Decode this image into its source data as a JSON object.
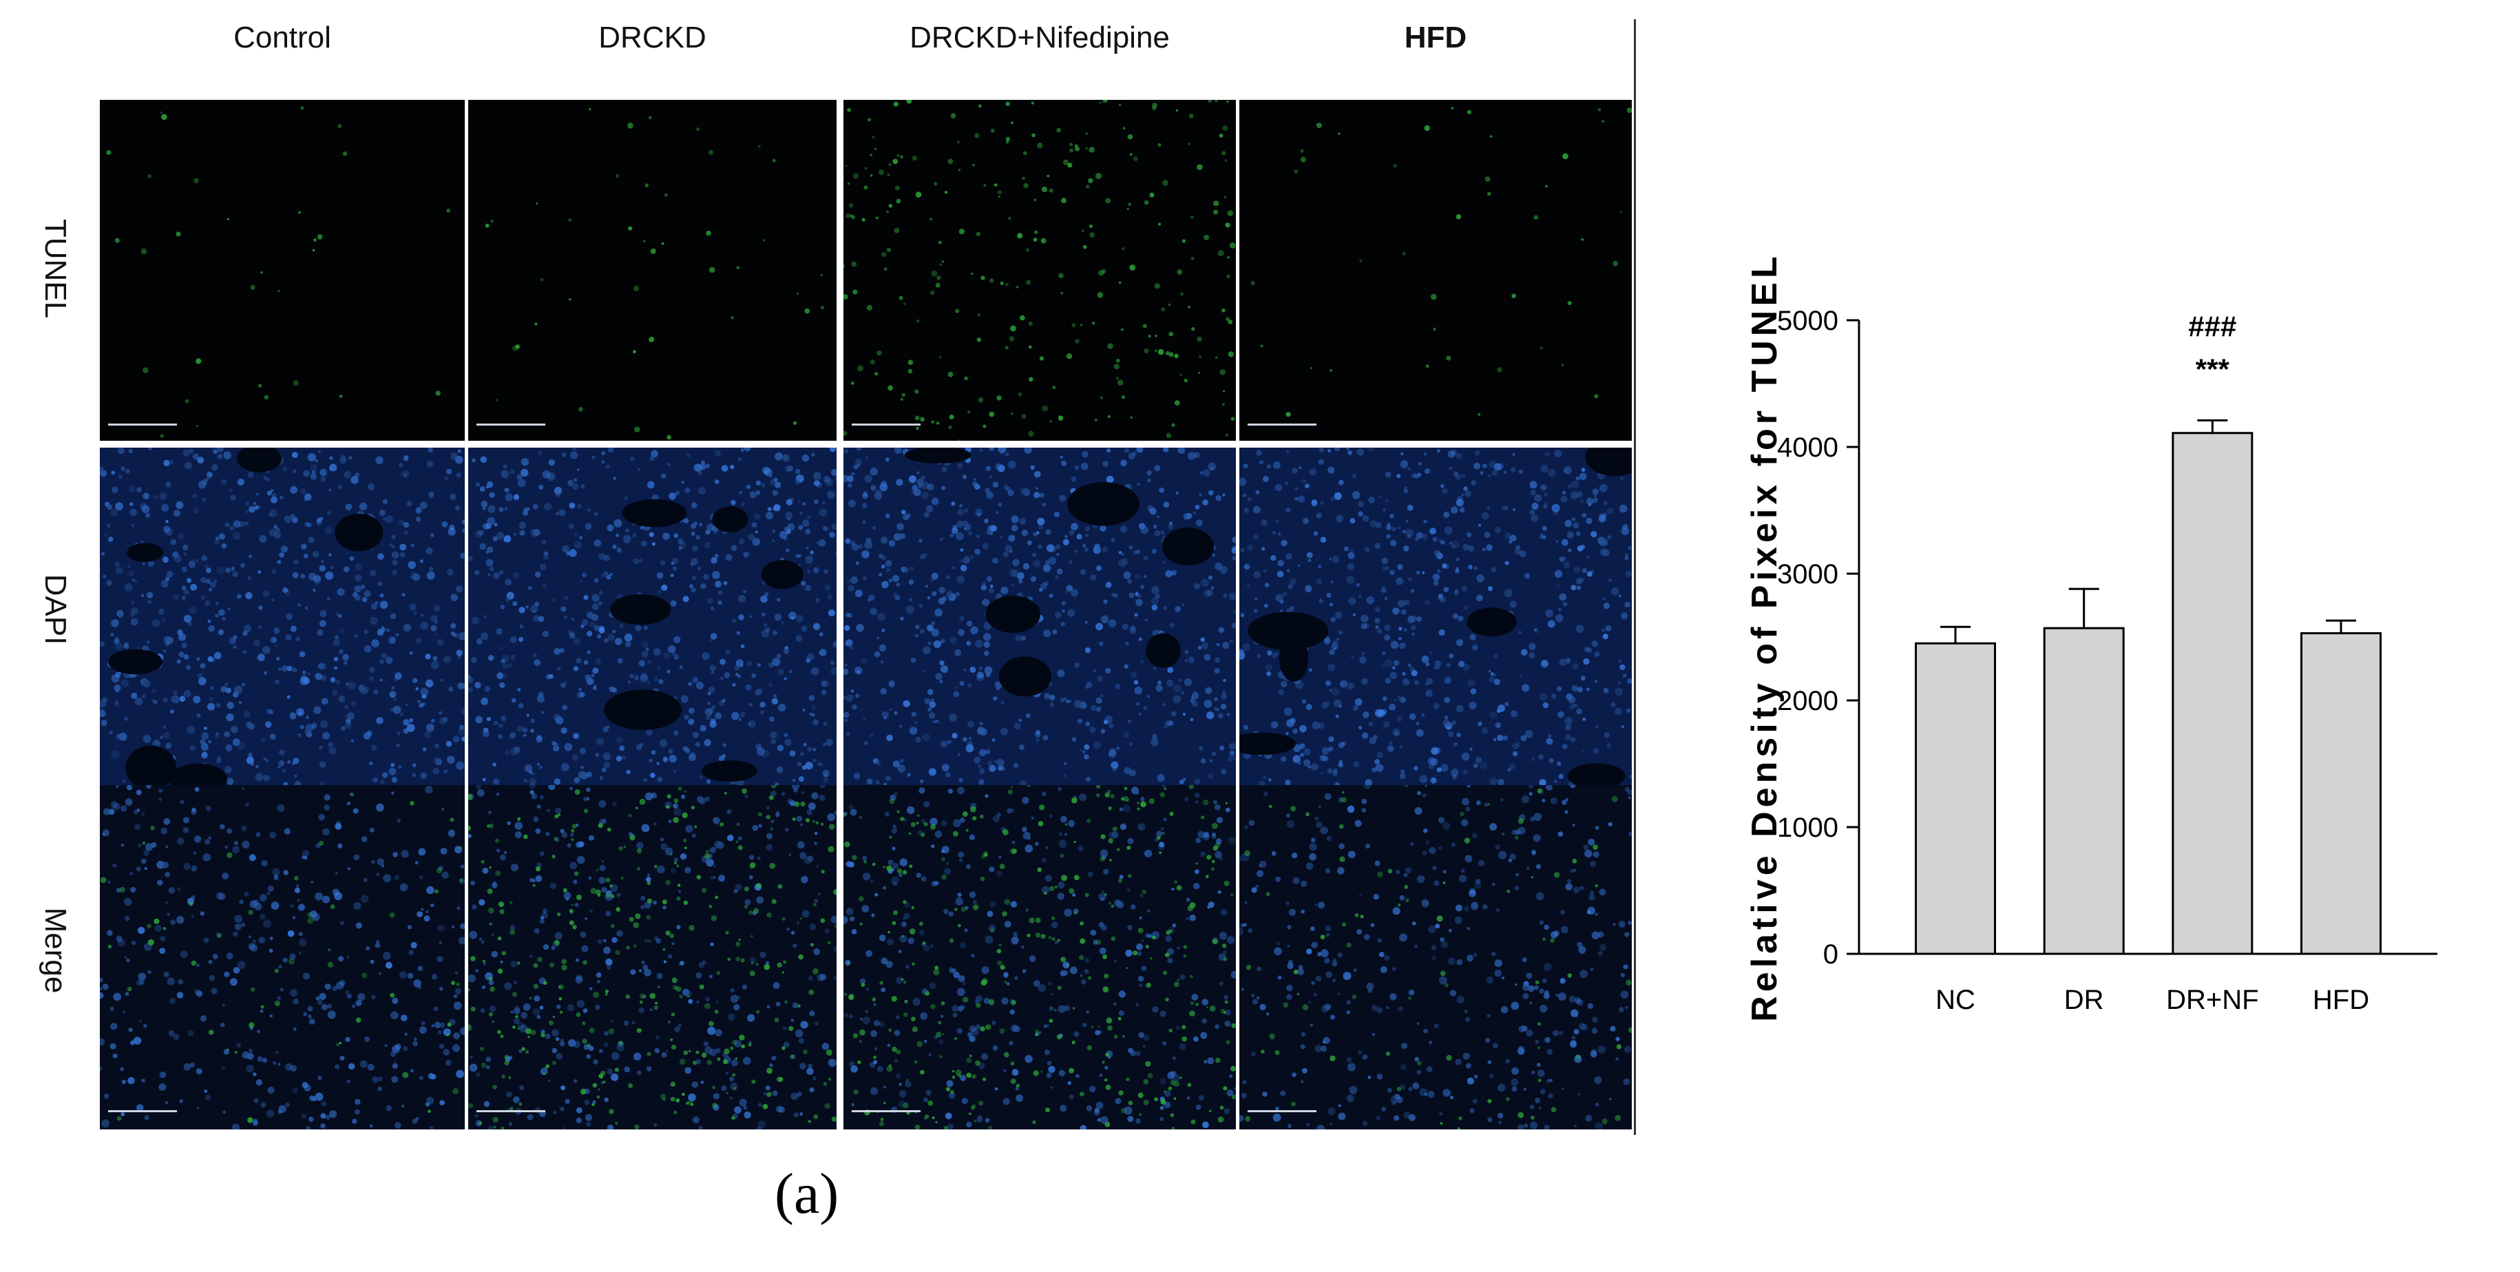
{
  "micrograph_panel": {
    "columns": [
      "Control",
      "DRCKD",
      "DRCKD+Nifedipine",
      "HFD"
    ],
    "rows": [
      "TUNEL",
      "DAPI",
      "Merge"
    ],
    "sub_label": "(a)"
  },
  "chart_data": {
    "type": "bar",
    "categories": [
      "NC",
      "DR",
      "DR+NF",
      "HFD"
    ],
    "values": [
      2450,
      2570,
      4110,
      2530
    ],
    "errors": [
      130,
      310,
      100,
      100
    ],
    "ylabel": "Relative Density of Pixeix for TUNEL",
    "ylim": [
      0,
      5000
    ],
    "yticks": [
      "0",
      "1000",
      "2000",
      "3000",
      "4000",
      "5000"
    ],
    "annotations": [
      {
        "category": "DR+NF",
        "text": "###"
      },
      {
        "category": "DR+NF",
        "text": "***"
      }
    ],
    "grid": false,
    "bar_color": "#d3d3d3"
  }
}
